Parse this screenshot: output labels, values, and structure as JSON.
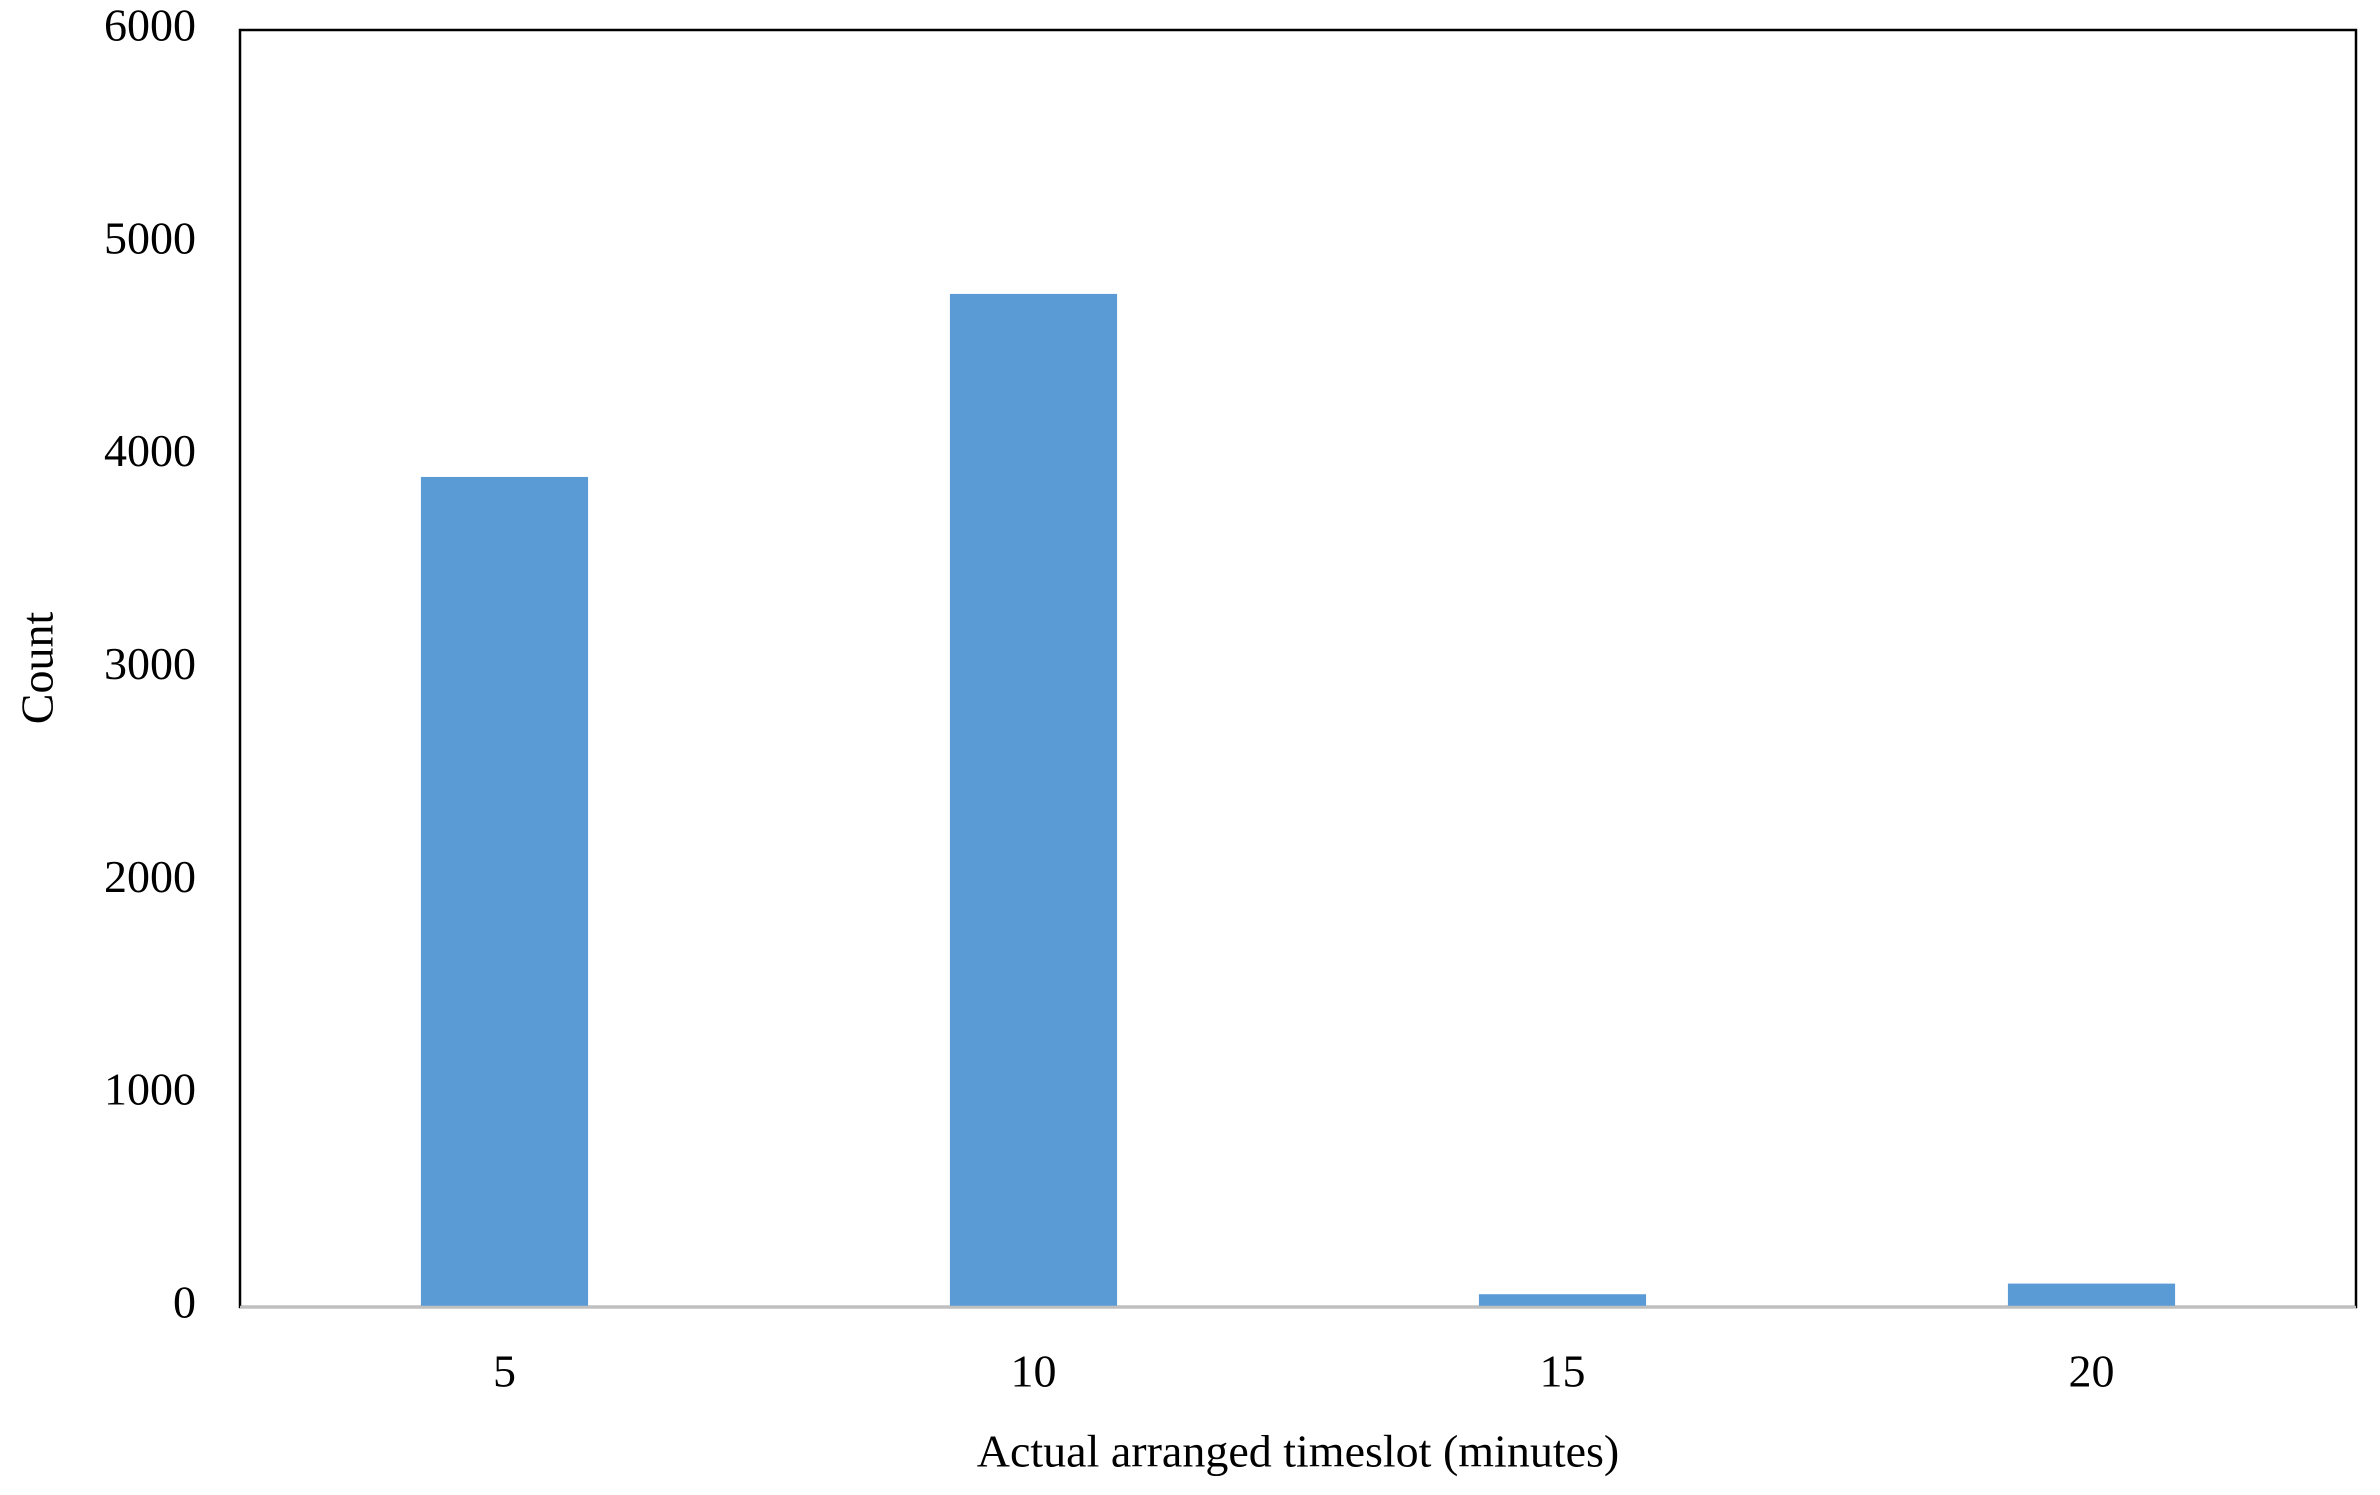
{
  "chart_data": {
    "type": "bar",
    "x_label": "Actual arranged timeslot (minutes)",
    "y_label": "Count",
    "categories": [
      "5",
      "10",
      "15",
      "20"
    ],
    "values": [
      3900,
      4760,
      60,
      110
    ],
    "color": "#5b9bd5",
    "ylim": [
      0,
      6000
    ],
    "yticks": [
      0,
      1000,
      2000,
      3000,
      4000,
      5000,
      6000
    ]
  }
}
